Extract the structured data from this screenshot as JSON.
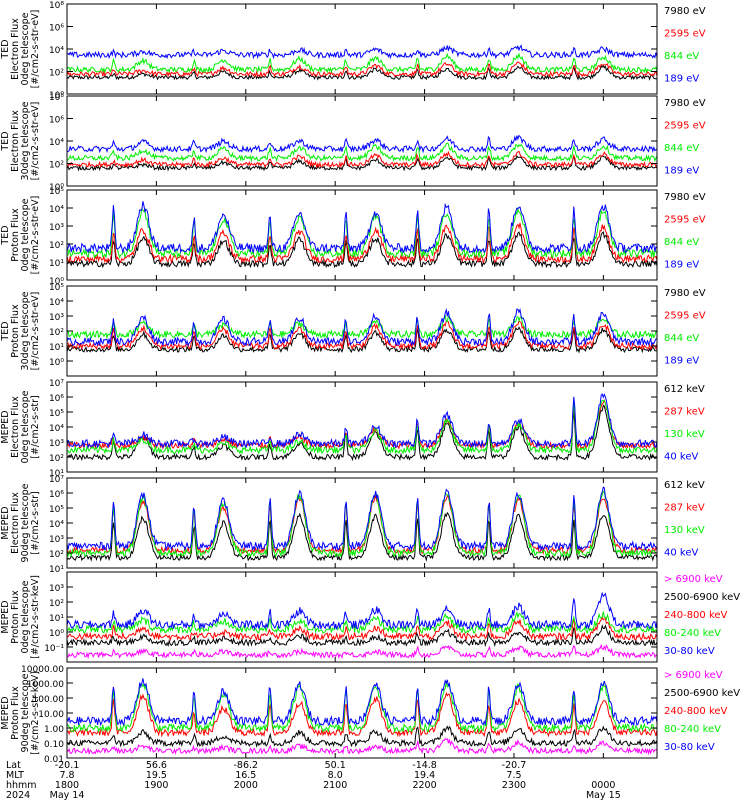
{
  "colors": {
    "blue": "#0000ff",
    "red": "#ff0000",
    "green": "#00ee00",
    "black": "#000000",
    "magenta": "#ff00ff"
  },
  "chart_data": [
    {
      "type": "line",
      "ylabel": [
        "TED",
        "Electron Flux",
        "0deg telescope",
        "[#/cm2-s-str-eV]"
      ],
      "yscale": "log",
      "ylim": [
        1,
        100000000
      ],
      "y_ticks": [
        {
          "value": 1,
          "label": "10⁰"
        },
        {
          "value": 100,
          "label": "10²"
        },
        {
          "value": 10000,
          "label": "10⁴"
        },
        {
          "value": 1000000,
          "label": "10⁶"
        },
        {
          "value": 100000000,
          "label": "10⁸"
        }
      ],
      "series": [
        {
          "name": "7980 eV",
          "color": "#000000",
          "bg": 30,
          "peaks": [
            60,
            90,
            120,
            150,
            175,
            220,
            240
          ]
        },
        {
          "name": "2595 eV",
          "color": "#ff0000",
          "bg": 60,
          "peaks": [
            120,
            200,
            280,
            350,
            450,
            560,
            500
          ]
        },
        {
          "name": "844 eV",
          "color": "#00ee00",
          "bg": 150,
          "peaks": [
            900,
            1100,
            1300,
            1500,
            2200,
            2400,
            2000
          ]
        },
        {
          "name": "189 eV",
          "color": "#0000ff",
          "bg": 3000,
          "peaks": [
            6000,
            7000,
            8000,
            9000,
            12000,
            14000,
            10000
          ]
        }
      ]
    },
    {
      "type": "line",
      "ylabel": [
        "TED",
        "Electron Flux",
        "30deg telescope",
        "[#/cm2-s-str-eV]"
      ],
      "yscale": "log",
      "ylim": [
        1,
        100000000
      ],
      "y_ticks": [
        {
          "value": 1,
          "label": "10⁰"
        },
        {
          "value": 100,
          "label": "10²"
        },
        {
          "value": 10000,
          "label": "10⁴"
        },
        {
          "value": 1000000,
          "label": "10⁶"
        },
        {
          "value": 100000000,
          "label": "10⁸"
        }
      ],
      "series": [
        {
          "name": "7980 eV",
          "color": "#000000",
          "bg": 40,
          "peaks": [
            80,
            120,
            150,
            200,
            320,
            400,
            350
          ]
        },
        {
          "name": "2595 eV",
          "color": "#ff0000",
          "bg": 80,
          "peaks": [
            200,
            300,
            400,
            500,
            700,
            800,
            700
          ]
        },
        {
          "name": "844 eV",
          "color": "#00ee00",
          "bg": 300,
          "peaks": [
            1500,
            2000,
            2500,
            3000,
            4000,
            4500,
            3500
          ]
        },
        {
          "name": "189 eV",
          "color": "#0000ff",
          "bg": 2000,
          "peaks": [
            8000,
            9000,
            10000,
            12000,
            15000,
            20000,
            14000
          ]
        }
      ]
    },
    {
      "type": "line",
      "ylabel": [
        "TED",
        "Proton Flux",
        "0deg telescope",
        "[#/cm2-s-str-eV]"
      ],
      "yscale": "log",
      "ylim": [
        1,
        100000
      ],
      "y_ticks": [
        {
          "value": 1,
          "label": "10⁰"
        },
        {
          "value": 10,
          "label": "10¹"
        },
        {
          "value": 100,
          "label": "10²"
        },
        {
          "value": 1000,
          "label": "10³"
        },
        {
          "value": 10000,
          "label": "10⁴"
        },
        {
          "value": 100000,
          "label": "10⁵"
        }
      ],
      "series": [
        {
          "name": "7980 eV",
          "color": "#000000",
          "bg": 8,
          "peaks": [
            200,
            150,
            180,
            200,
            300,
            400,
            350
          ]
        },
        {
          "name": "2595 eV",
          "color": "#ff0000",
          "bg": 15,
          "peaks": [
            600,
            400,
            500,
            600,
            900,
            1200,
            1000
          ]
        },
        {
          "name": "844 eV",
          "color": "#00ee00",
          "bg": 30,
          "peaks": [
            8000,
            2500,
            3000,
            4000,
            6000,
            8000,
            7000
          ]
        },
        {
          "name": "189 eV",
          "color": "#0000ff",
          "bg": 60,
          "peaks": [
            15000,
            4000,
            5000,
            6000,
            12000,
            15000,
            13000
          ]
        }
      ]
    },
    {
      "type": "line",
      "ylabel": [
        "TED",
        "Proton Flux",
        "30deg telescope",
        "[#/cm2-s-str-eV]"
      ],
      "yscale": "log",
      "ylim": [
        0.1,
        100000
      ],
      "y_ticks": [
        {
          "value": 1,
          "label": "10⁰"
        },
        {
          "value": 10,
          "label": "10¹"
        },
        {
          "value": 100,
          "label": "10²"
        },
        {
          "value": 1000,
          "label": "10³"
        },
        {
          "value": 10000,
          "label": "10⁴"
        },
        {
          "value": 100000,
          "label": "10⁵"
        }
      ],
      "series": [
        {
          "name": "7980 eV",
          "color": "#000000",
          "bg": 6,
          "peaks": [
            60,
            50,
            70,
            80,
            120,
            150,
            130
          ]
        },
        {
          "name": "2595 eV",
          "color": "#ff0000",
          "bg": 10,
          "peaks": [
            150,
            120,
            150,
            180,
            300,
            350,
            300
          ]
        },
        {
          "name": "844 eV",
          "color": "#00ee00",
          "bg": 60,
          "peaks": [
            300,
            250,
            300,
            400,
            700,
            800,
            600
          ]
        },
        {
          "name": "189 eV",
          "color": "#0000ff",
          "bg": 20,
          "peaks": [
            800,
            600,
            700,
            900,
            1500,
            2000,
            1500
          ]
        }
      ]
    },
    {
      "type": "line",
      "ylabel": [
        "MEPED",
        "Electron Flux",
        "0deg telescope",
        "[#/cm2-s-str]"
      ],
      "yscale": "log",
      "ylim": [
        10,
        10000000
      ],
      "y_ticks": [
        {
          "value": 10,
          "label": "10¹"
        },
        {
          "value": 100,
          "label": "10²"
        },
        {
          "value": 1000,
          "label": "10³"
        },
        {
          "value": 10000,
          "label": "10⁴"
        },
        {
          "value": 100000,
          "label": "10⁵"
        },
        {
          "value": 1000000,
          "label": "10⁶"
        },
        {
          "value": 10000000,
          "label": "10⁷"
        }
      ],
      "series": [
        {
          "name": "612 keV",
          "color": "#000000",
          "bg": 100,
          "peaks": [
            2000,
            600,
            800,
            4000,
            15000,
            10000,
            200000
          ]
        },
        {
          "name": "287 keV",
          "color": "#ff0000",
          "bg": 600,
          "peaks": [
            2000,
            1500,
            2000,
            6000,
            30000,
            20000,
            500000
          ]
        },
        {
          "name": "130 keV",
          "color": "#00ee00",
          "bg": 300,
          "peaks": [
            1500,
            800,
            1000,
            5000,
            25000,
            15000,
            800000
          ]
        },
        {
          "name": "40 keV",
          "color": "#0000ff",
          "bg": 800,
          "peaks": [
            3000,
            2000,
            3000,
            10000,
            60000,
            30000,
            1500000
          ]
        }
      ]
    },
    {
      "type": "line",
      "ylabel": [
        "MEPED",
        "Electron Flux",
        "90deg telescope",
        "[#/cm2-s-str]"
      ],
      "yscale": "log",
      "ylim": [
        10,
        10000000
      ],
      "y_ticks": [
        {
          "value": 10,
          "label": "10¹"
        },
        {
          "value": 100,
          "label": "10²"
        },
        {
          "value": 1000,
          "label": "10³"
        },
        {
          "value": 10000,
          "label": "10⁴"
        },
        {
          "value": 100000,
          "label": "10⁵"
        },
        {
          "value": 1000000,
          "label": "10⁶"
        },
        {
          "value": 10000000,
          "label": "10⁷"
        }
      ],
      "series": [
        {
          "name": "612 keV",
          "color": "#000000",
          "bg": 50,
          "peaks": [
            20000,
            10000,
            30000,
            30000,
            40000,
            30000,
            40000
          ]
        },
        {
          "name": "287 keV",
          "color": "#ff0000",
          "bg": 150,
          "peaks": [
            300000,
            100000,
            400000,
            500000,
            600000,
            400000,
            600000
          ]
        },
        {
          "name": "130 keV",
          "color": "#00ee00",
          "bg": 100,
          "peaks": [
            500000,
            200000,
            700000,
            800000,
            1000000,
            600000,
            1000000
          ]
        },
        {
          "name": "40 keV",
          "color": "#0000ff",
          "bg": 300,
          "peaks": [
            700000,
            300000,
            900000,
            1000000,
            1500000,
            800000,
            1500000
          ]
        }
      ]
    },
    {
      "type": "line",
      "ylabel": [
        "MEPED",
        "Proton Flux",
        "0deg telescope",
        "[#/cm2-s-str-keV]"
      ],
      "yscale": "log",
      "ylim": [
        0.01,
        10000
      ],
      "y_ticks": [
        {
          "value": 0.1,
          "label": "10⁻¹"
        },
        {
          "value": 1,
          "label": "10⁰"
        },
        {
          "value": 10,
          "label": "10¹"
        },
        {
          "value": 100,
          "label": "10²"
        },
        {
          "value": 1000,
          "label": "10³"
        }
      ],
      "series": [
        {
          "name": "> 6900 keV",
          "color": "#ff00ff",
          "bg": 0.03,
          "peaks": [
            0.05,
            0.05,
            0.05,
            0.05,
            0.1,
            0.1,
            0.1
          ]
        },
        {
          "name": "2500-6900 keV",
          "color": "#000000",
          "bg": 0.2,
          "peaks": [
            0.5,
            0.4,
            0.5,
            0.5,
            1,
            1,
            2
          ]
        },
        {
          "name": "240-800 keV",
          "color": "#ff0000",
          "bg": 0.5,
          "peaks": [
            2,
            1,
            1.5,
            2,
            4,
            5,
            8
          ]
        },
        {
          "name": "80-240 keV",
          "color": "#00ee00",
          "bg": 1.5,
          "peaks": [
            6,
            5,
            6,
            7,
            10,
            12,
            15
          ]
        },
        {
          "name": "30-80 keV",
          "color": "#0000ff",
          "bg": 3,
          "peaks": [
            30,
            20,
            25,
            30,
            40,
            50,
            300
          ]
        }
      ]
    },
    {
      "type": "line",
      "ylabel": [
        "MEPED",
        "Proton Flux",
        "90deg telescope",
        "[#/cm2-s-str-keV]"
      ],
      "yscale": "log",
      "ylim": [
        0.01,
        10000
      ],
      "y_ticks": [
        {
          "value": 0.01,
          "label": "0.01"
        },
        {
          "value": 0.1,
          "label": "0.10"
        },
        {
          "value": 1,
          "label": "1.00"
        },
        {
          "value": 10,
          "label": "10.00"
        },
        {
          "value": 100,
          "label": "100.00"
        },
        {
          "value": 1000,
          "label": "1000.00"
        },
        {
          "value": 10000,
          "label": "10000.00"
        }
      ],
      "series": [
        {
          "name": "> 6900 keV",
          "color": "#ff00ff",
          "bg": 0.03,
          "peaks": [
            0.06,
            0.05,
            0.06,
            0.06,
            0.15,
            0.1,
            0.1
          ]
        },
        {
          "name": "2500-6900 keV",
          "color": "#000000",
          "bg": 0.1,
          "peaks": [
            0.5,
            0.3,
            0.5,
            0.6,
            1,
            1,
            1
          ]
        },
        {
          "name": "240-800 keV",
          "color": "#ff0000",
          "bg": 0.5,
          "peaks": [
            150,
            20,
            50,
            100,
            200,
            60,
            50
          ]
        },
        {
          "name": "80-240 keV",
          "color": "#00ee00",
          "bg": 1,
          "peaks": [
            1000,
            200,
            500,
            600,
            1000,
            500,
            500
          ]
        },
        {
          "name": "30-80 keV",
          "color": "#0000ff",
          "bg": 3,
          "peaks": [
            1500,
            300,
            800,
            800,
            1500,
            800,
            800
          ]
        }
      ]
    }
  ],
  "x_axis": {
    "row_labels": [
      "Lat",
      "MLT",
      "hhmm",
      "2024"
    ],
    "ticks": [
      {
        "hour": 0,
        "lat": "-20.1",
        "mlt": "7.8",
        "hhmm": "1800",
        "date": "May 14"
      },
      {
        "hour": 1,
        "lat": "56.6",
        "mlt": "19.5",
        "hhmm": "1900",
        "date": ""
      },
      {
        "hour": 2,
        "lat": "-86.2",
        "mlt": "16.5",
        "hhmm": "2000",
        "date": ""
      },
      {
        "hour": 3,
        "lat": "50.1",
        "mlt": "8.0",
        "hhmm": "2100",
        "date": ""
      },
      {
        "hour": 4,
        "lat": "-14.8",
        "mlt": "19.4",
        "hhmm": "2200",
        "date": ""
      },
      {
        "hour": 5,
        "lat": "-20.7",
        "mlt": "7.5",
        "hhmm": "2300",
        "date": ""
      },
      {
        "hour": 6,
        "lat": "",
        "mlt": "",
        "hhmm": "0000",
        "date": "May 15"
      }
    ]
  }
}
